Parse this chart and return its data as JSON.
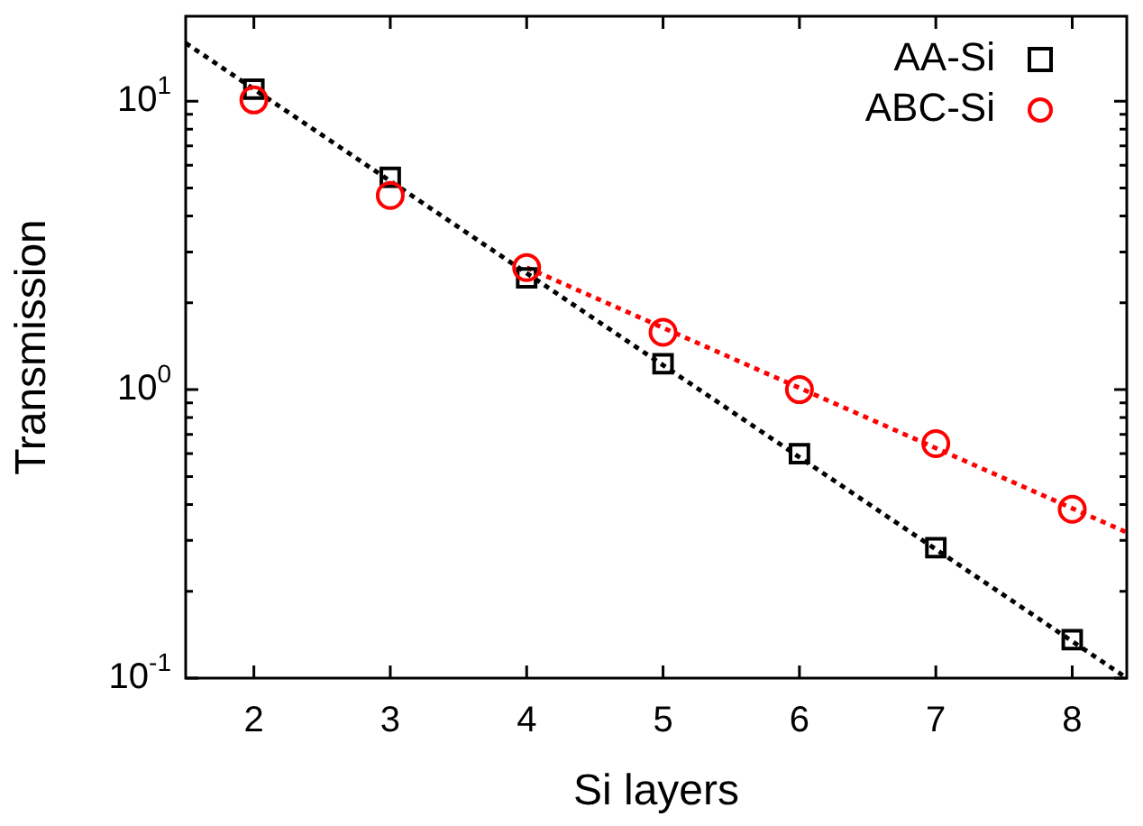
{
  "chart_data": {
    "type": "scatter",
    "xlabel": "Si layers",
    "ylabel": "Transmission",
    "log": "y",
    "grid": false,
    "legend": "top right",
    "xlim": [
      1.5,
      8.4
    ],
    "xticks": [
      2,
      3,
      4,
      5,
      6,
      7,
      8
    ],
    "ylim": [
      0.1,
      19.7
    ],
    "yticks": [
      {
        "value": 0.1,
        "label": "10$^{-1}$"
      },
      {
        "value": 0.2,
        "label": null
      },
      {
        "value": 0.3,
        "label": null
      },
      {
        "value": 0.4,
        "label": null
      },
      {
        "value": 0.5,
        "label": null
      },
      {
        "value": 0.6,
        "label": null
      },
      {
        "value": 0.7,
        "label": null
      },
      {
        "value": 0.8,
        "label": null
      },
      {
        "value": 0.9,
        "label": null
      },
      {
        "value": 1,
        "label": "10$^{0}$"
      },
      {
        "value": 2,
        "label": null
      },
      {
        "value": 3,
        "label": null
      },
      {
        "value": 4,
        "label": null
      },
      {
        "value": 5,
        "label": null
      },
      {
        "value": 6,
        "label": null
      },
      {
        "value": 7,
        "label": null
      },
      {
        "value": 8,
        "label": null
      },
      {
        "value": 9,
        "label": null
      },
      {
        "value": 10,
        "label": "10$^{1}$"
      }
    ],
    "x": [
      2,
      3,
      4,
      5,
      6,
      7,
      8
    ],
    "series": [
      {
        "type": "line",
        "color": "#000000",
        "line_style": "dotted",
        "marker": "none",
        "x": [
          1.5,
          8.4
        ],
        "values": [
          15.9,
          0.1
        ]
      },
      {
        "type": "line",
        "color": "#ff0000",
        "line_style": "dotted",
        "marker": "none",
        "x": [
          4,
          8.4
        ],
        "values": [
          2.65,
          0.32
        ]
      },
      {
        "name": "AA-Si",
        "color": "#000000",
        "marker": "square",
        "values": [
          11.0,
          5.45,
          2.44,
          1.23,
          0.6,
          0.283,
          0.136
        ]
      },
      {
        "name": "ABC-Si",
        "color": "#ff0000",
        "marker": "circle",
        "values": [
          10.1,
          4.71,
          2.65,
          1.58,
          1.0,
          0.65,
          0.385
        ]
      }
    ]
  }
}
